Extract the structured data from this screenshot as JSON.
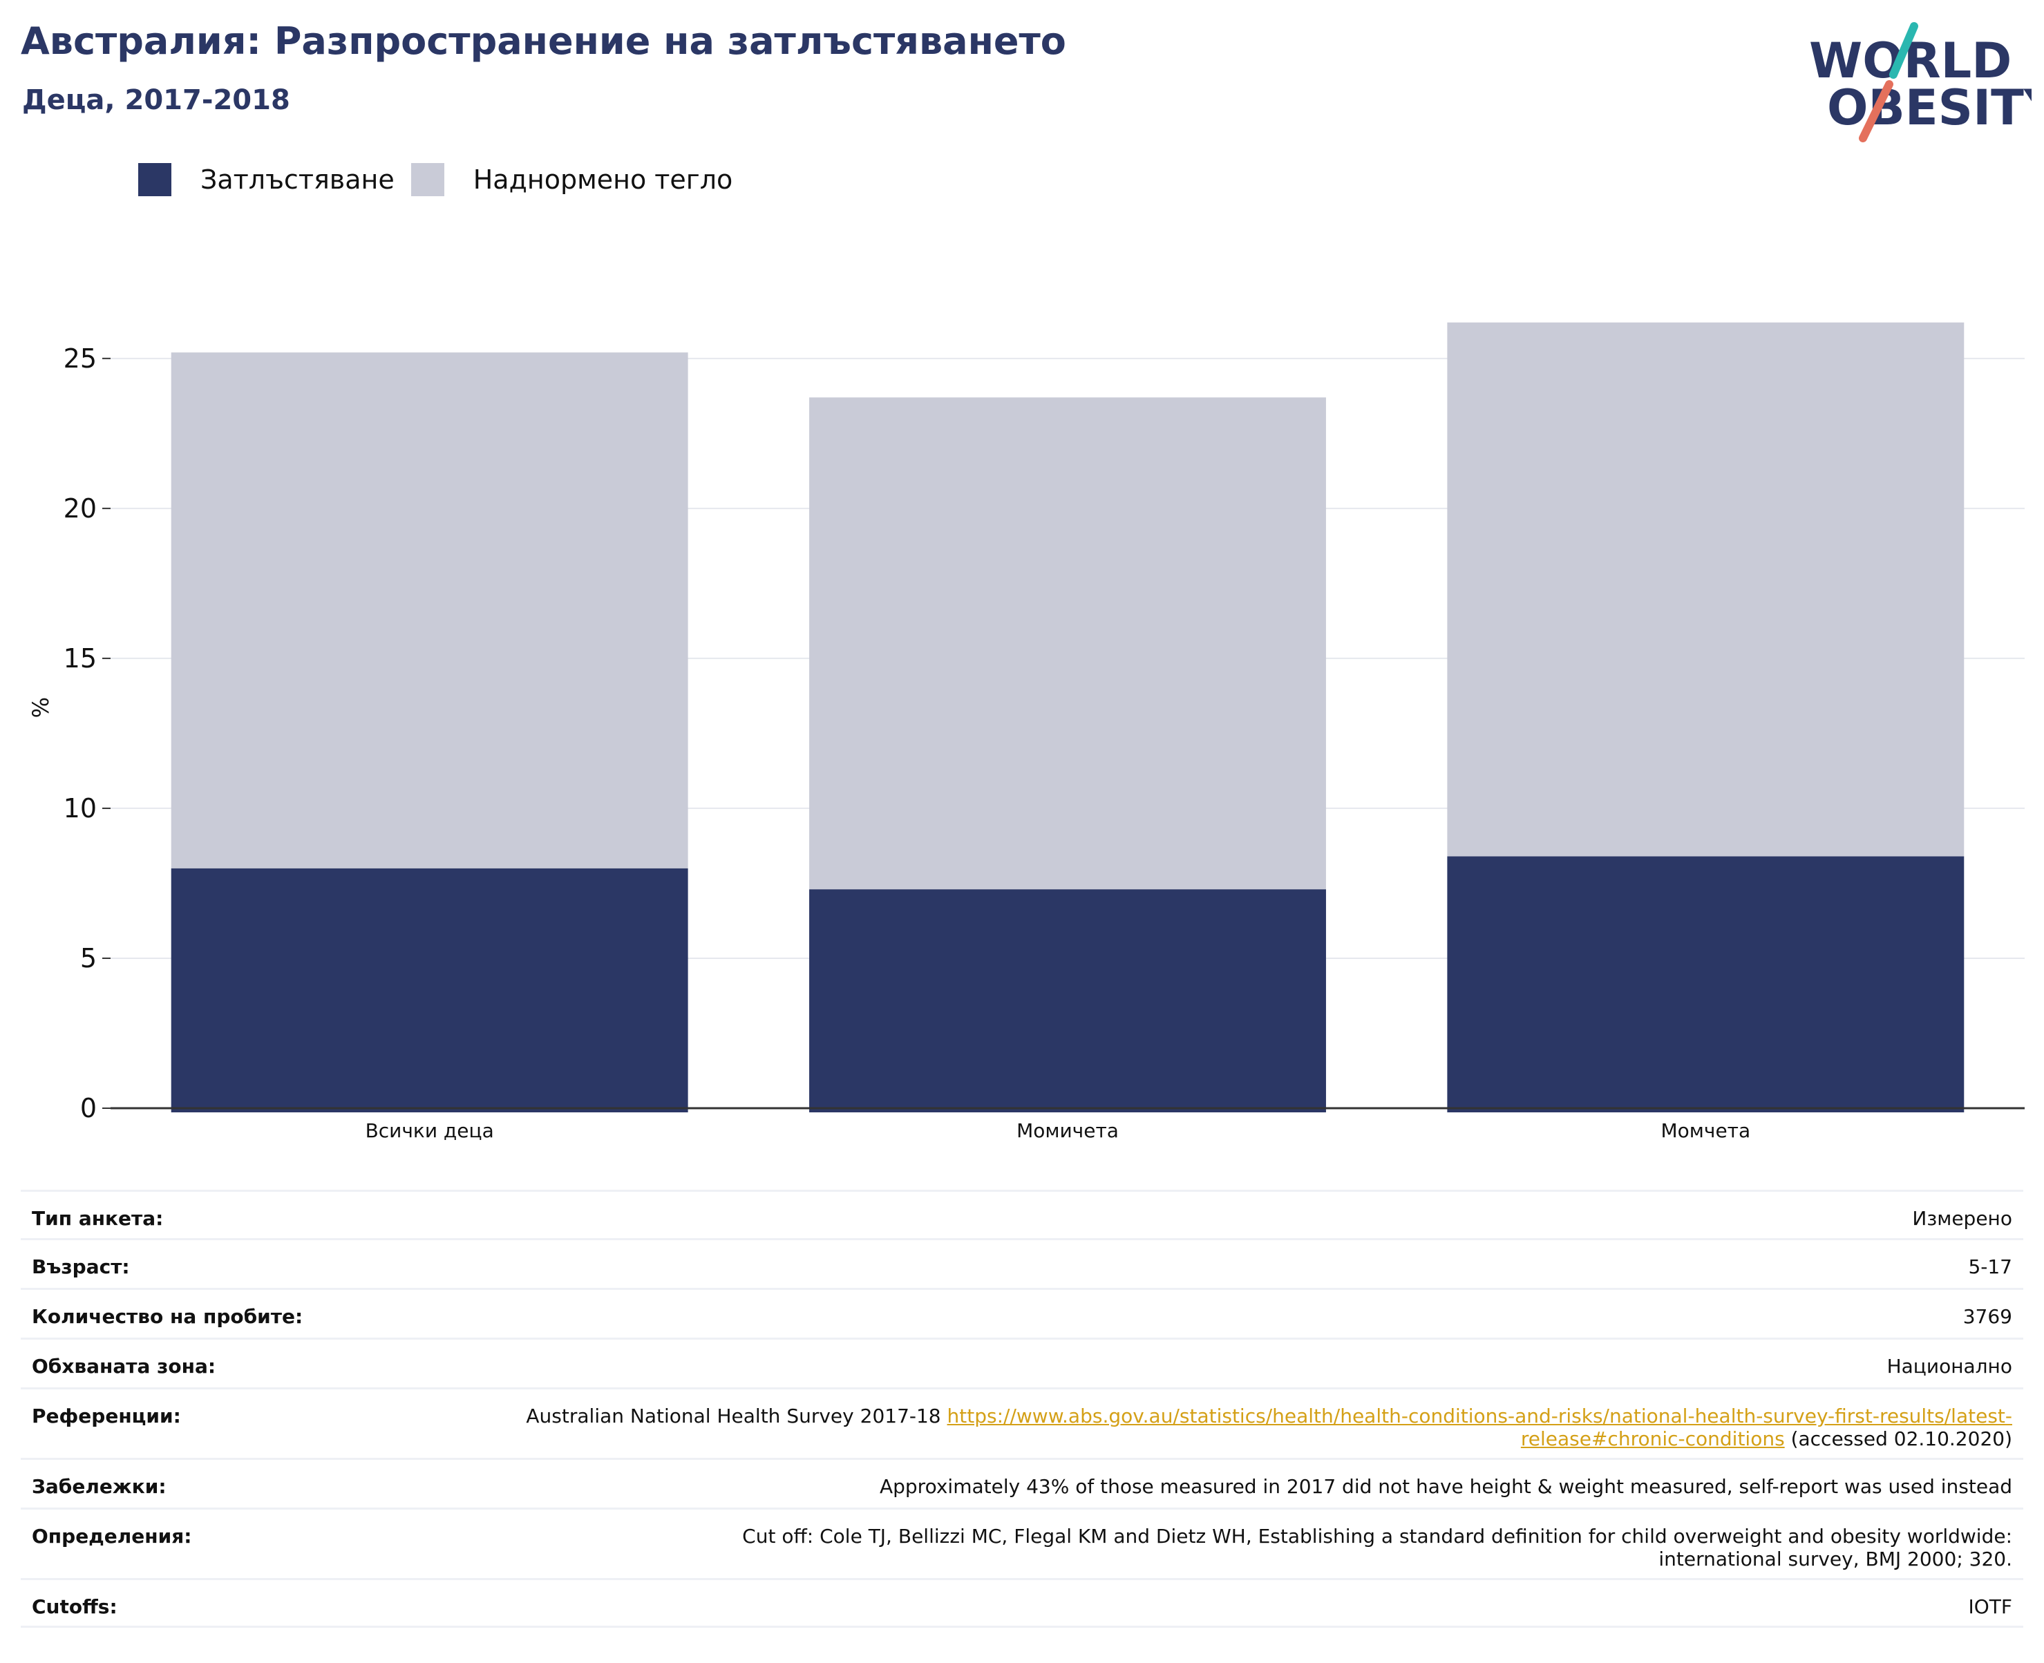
{
  "header": {
    "title": "Австралия: Разпространение на затлъстяването",
    "subtitle": "Деца, 2017-2018"
  },
  "logo": {
    "line1": "WORLD",
    "line2": "OBESITY",
    "colors": {
      "text": "#2b3765",
      "slash_top": "#2ab7b0",
      "slash_bottom": "#e4705c"
    }
  },
  "legend": [
    {
      "label": "Затлъстяване",
      "color": "#2b3765"
    },
    {
      "label": "Наднормено тегло",
      "color": "#c9cbd7"
    }
  ],
  "chart_data": {
    "type": "bar",
    "stacked": true,
    "categories": [
      "Всички деца",
      "Момичета",
      "Момчета"
    ],
    "series": [
      {
        "name": "Затлъстяване",
        "values": [
          8.0,
          7.3,
          8.4
        ],
        "color": "#2b3765"
      },
      {
        "name": "Наднормено тегло",
        "values": [
          17.2,
          16.4,
          17.8
        ],
        "color": "#c9cbd7"
      }
    ],
    "ylabel": "%",
    "ylim": [
      0,
      27
    ],
    "yticks": [
      0,
      5,
      10,
      15,
      20,
      25
    ],
    "grid": true,
    "legend_position": "top-left"
  },
  "info": [
    {
      "label": "Тип анкета:",
      "value": "Измерено"
    },
    {
      "label": "Възраст:",
      "value": "5-17"
    },
    {
      "label": "Количество на пробите:",
      "value": "3769"
    },
    {
      "label": "Обхваната зона:",
      "value": "Национално"
    },
    {
      "label": "Референции:",
      "value": "Australian National Health Survey 2017-18",
      "link": "https://www.abs.gov.au/statistics/health/health-conditions-and-risks/national-health-survey-first-results/latest-release#chronic-conditions",
      "suffix": "(accessed 02.10.2020)"
    },
    {
      "label": "Забележки:",
      "value": "Approximately 43% of those measured in 2017 did not have height & weight measured, self-report was used instead"
    },
    {
      "label": "Определения:",
      "value": "Cut off: Cole TJ, Bellizzi MC, Flegal KM and Dietz WH, Establishing a standard definition for child overweight and obesity worldwide: international survey, BMJ 2000; 320."
    },
    {
      "label": "Cutoffs:",
      "value": "IOTF"
    }
  ]
}
